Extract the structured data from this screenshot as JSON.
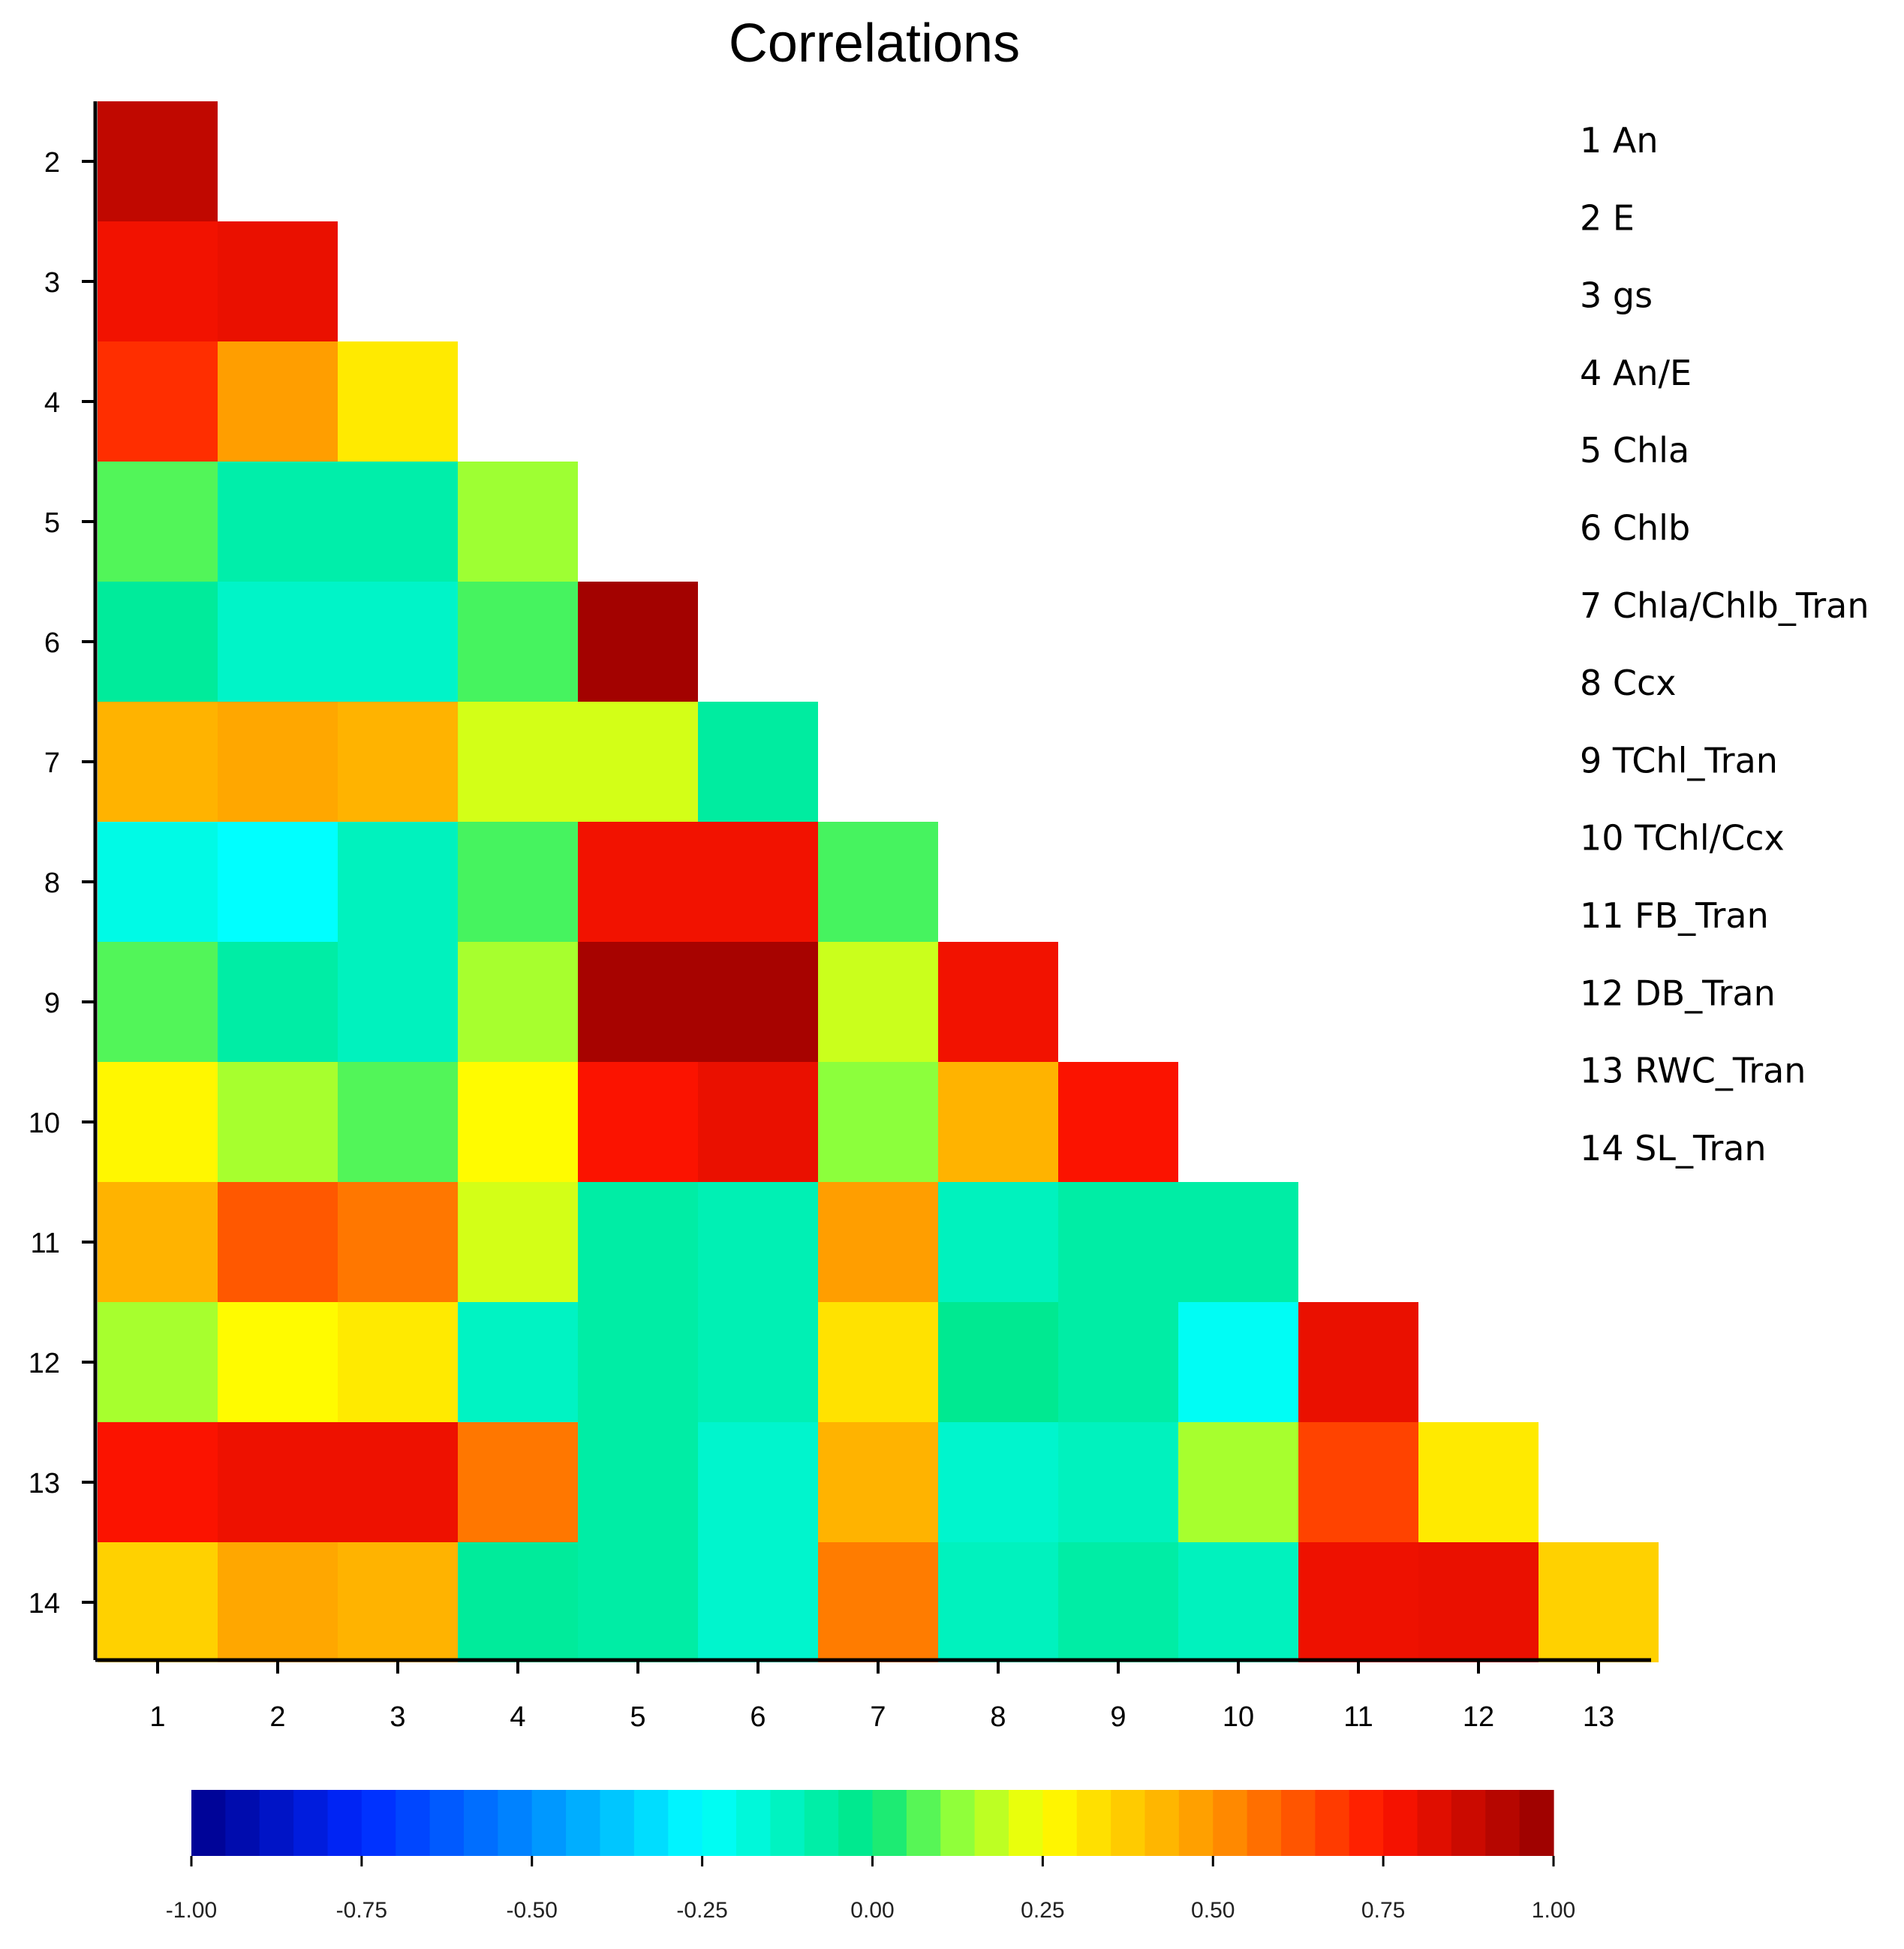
{
  "chart_data": {
    "type": "heatmap",
    "title": "Correlations",
    "x_tick_labels": [
      "1",
      "2",
      "3",
      "4",
      "5",
      "6",
      "7",
      "8",
      "9",
      "10",
      "11",
      "12",
      "13"
    ],
    "y_tick_labels": [
      "2",
      "3",
      "4",
      "5",
      "6",
      "7",
      "8",
      "9",
      "10",
      "11",
      "12",
      "13",
      "14"
    ],
    "variables": [
      "1 An",
      "2 E",
      "3 gs",
      "4 An/E",
      "5 Chla",
      "6 Chlb",
      "7 Chla/Chlb_Tran",
      "8 Ccx",
      "9 TChl_Tran",
      "10 TChl/Ccx",
      "11 FB_Tran",
      "12 DB_Tran",
      "13 RWC_Tran",
      "14 SL_Tran"
    ],
    "matrix": [
      [
        0.9
      ],
      [
        0.78,
        0.8
      ],
      [
        0.7,
        0.48,
        0.3
      ],
      [
        0.07,
        -0.08,
        -0.08,
        0.14
      ],
      [
        -0.05,
        -0.14,
        -0.14,
        0.06,
        0.97
      ],
      [
        0.43,
        0.46,
        0.43,
        0.2,
        0.2,
        -0.06
      ],
      [
        -0.2,
        -0.25,
        -0.12,
        0.06,
        0.78,
        0.78,
        0.06
      ],
      [
        0.07,
        -0.07,
        -0.12,
        0.15,
        0.96,
        0.96,
        0.19,
        0.78
      ],
      [
        0.27,
        0.15,
        0.07,
        0.26,
        0.76,
        0.8,
        0.12,
        0.43,
        0.76
      ],
      [
        0.43,
        0.62,
        0.56,
        0.2,
        -0.07,
        -0.1,
        0.48,
        -0.12,
        -0.07,
        -0.07
      ],
      [
        0.15,
        0.26,
        0.3,
        -0.13,
        -0.07,
        -0.1,
        0.32,
        -0.03,
        -0.07,
        -0.23,
        0.8
      ],
      [
        0.76,
        0.79,
        0.79,
        0.56,
        -0.07,
        -0.15,
        0.43,
        -0.15,
        -0.12,
        0.15,
        0.66,
        0.3
      ],
      [
        0.36,
        0.46,
        0.43,
        -0.05,
        -0.07,
        -0.15,
        0.55,
        -0.12,
        -0.07,
        -0.12,
        0.79,
        0.8,
        0.36
      ]
    ],
    "colorbar": {
      "range": [
        -1.0,
        1.0
      ],
      "tick_labels": [
        "-1.00",
        "-0.75",
        "-0.50",
        "-0.25",
        "0.00",
        "0.25",
        "0.50",
        "0.75",
        "1.00"
      ],
      "tick_values": [
        -1.0,
        -0.75,
        -0.5,
        -0.25,
        0.0,
        0.25,
        0.5,
        0.75,
        1.0
      ]
    }
  }
}
